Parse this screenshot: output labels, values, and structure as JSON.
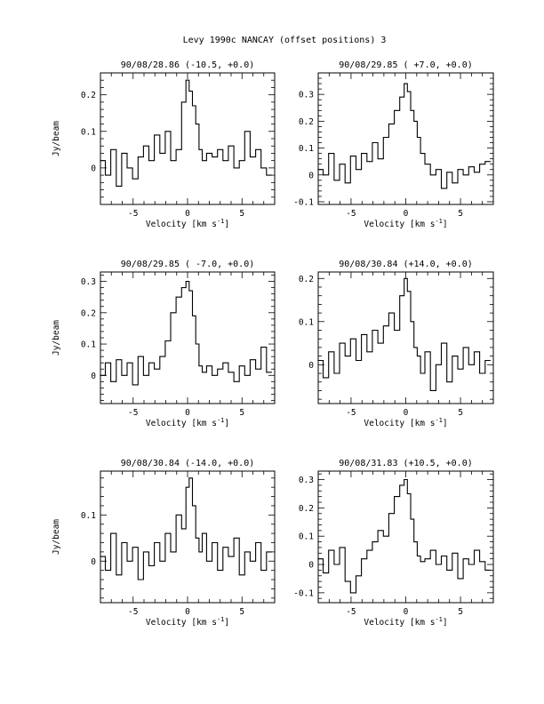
{
  "page_title": "Levy 1990c   NANCAY     (offset positions)    3",
  "chart_data": [
    {
      "type": "line",
      "title": "90/08/28.86  (-10.5, +0.0)",
      "xlabel": "Velocity [km s",
      "xlabel_sup": "-1",
      "xlabel_end": "]",
      "ylabel": "Jy/beam",
      "xlim": [
        -8,
        8
      ],
      "ylim": [
        -0.1,
        0.26
      ],
      "xticks": [
        -5,
        0,
        5
      ],
      "yticks": [
        0,
        0.1,
        0.2
      ],
      "xtick_labels": [
        "-5",
        "0",
        "5"
      ],
      "ytick_labels": [
        "0",
        "0.1",
        "0.2"
      ],
      "series": [
        {
          "x": [
            -7.8,
            -7.3,
            -6.8,
            -6.3,
            -5.8,
            -5.3,
            -4.8,
            -4.3,
            -3.8,
            -3.3,
            -2.8,
            -2.3,
            -1.8,
            -1.3,
            -0.8,
            -0.3,
            0.0,
            0.3,
            0.6,
            0.9,
            1.2,
            1.5,
            2.0,
            2.5,
            3.0,
            3.5,
            4.0,
            4.5,
            5.0,
            5.5,
            6.0,
            6.5,
            7.0,
            7.5
          ],
          "y": [
            0.02,
            -0.02,
            0.05,
            -0.05,
            0.04,
            0.0,
            -0.03,
            0.03,
            0.06,
            0.02,
            0.09,
            0.04,
            0.1,
            0.02,
            0.05,
            0.18,
            0.24,
            0.21,
            0.17,
            0.12,
            0.05,
            0.02,
            0.04,
            0.03,
            0.05,
            0.02,
            0.06,
            0.0,
            0.02,
            0.1,
            0.03,
            0.05,
            0.0,
            -0.02
          ]
        }
      ]
    },
    {
      "type": "line",
      "title": "90/08/29.85  ( +7.0, +0.0)",
      "xlabel": "Velocity [km s",
      "xlabel_sup": "-1",
      "xlabel_end": "]",
      "ylabel": "",
      "xlim": [
        -8,
        8
      ],
      "ylim": [
        -0.11,
        0.38
      ],
      "xticks": [
        -5,
        0,
        5
      ],
      "yticks": [
        -0.1,
        0,
        0.1,
        0.2,
        0.3
      ],
      "xtick_labels": [
        "-5",
        "0",
        "5"
      ],
      "ytick_labels": [
        "-0.1",
        "0",
        "0.1",
        "0.2",
        "0.3"
      ],
      "series": [
        {
          "x": [
            -7.8,
            -7.3,
            -6.8,
            -6.3,
            -5.8,
            -5.3,
            -4.8,
            -4.3,
            -3.8,
            -3.3,
            -2.8,
            -2.3,
            -1.8,
            -1.3,
            -0.8,
            -0.3,
            0.0,
            0.3,
            0.6,
            0.9,
            1.2,
            1.5,
            2.0,
            2.5,
            3.0,
            3.5,
            4.0,
            4.5,
            5.0,
            5.5,
            6.0,
            6.5,
            7.0,
            7.5
          ],
          "y": [
            0.02,
            0.0,
            0.08,
            -0.02,
            0.04,
            -0.03,
            0.07,
            0.02,
            0.08,
            0.05,
            0.12,
            0.06,
            0.14,
            0.19,
            0.24,
            0.29,
            0.34,
            0.31,
            0.24,
            0.2,
            0.14,
            0.08,
            0.04,
            0.0,
            0.02,
            -0.05,
            0.01,
            -0.03,
            0.02,
            0.0,
            0.03,
            0.01,
            0.04,
            0.05
          ]
        }
      ]
    },
    {
      "type": "line",
      "title": "90/08/29.85  ( -7.0, +0.0)",
      "xlabel": "Velocity [km s",
      "xlabel_sup": "-1",
      "xlabel_end": "]",
      "ylabel": "Jy/beam",
      "xlim": [
        -8,
        8
      ],
      "ylim": [
        -0.09,
        0.33
      ],
      "xticks": [
        -5,
        0,
        5
      ],
      "yticks": [
        0,
        0.1,
        0.2,
        0.3
      ],
      "xtick_labels": [
        "-5",
        "0",
        "5"
      ],
      "ytick_labels": [
        "0",
        "0.1",
        "0.2",
        "0.3"
      ],
      "series": [
        {
          "x": [
            -7.8,
            -7.3,
            -6.8,
            -6.3,
            -5.8,
            -5.3,
            -4.8,
            -4.3,
            -3.8,
            -3.3,
            -2.8,
            -2.3,
            -1.8,
            -1.3,
            -0.8,
            -0.3,
            0.0,
            0.3,
            0.6,
            0.9,
            1.2,
            1.5,
            2.0,
            2.5,
            3.0,
            3.5,
            4.0,
            4.5,
            5.0,
            5.5,
            6.0,
            6.5,
            7.0,
            7.5
          ],
          "y": [
            0.0,
            0.04,
            -0.02,
            0.05,
            0.0,
            0.04,
            -0.03,
            0.06,
            0.0,
            0.04,
            0.02,
            0.06,
            0.11,
            0.2,
            0.25,
            0.28,
            0.3,
            0.27,
            0.19,
            0.1,
            0.03,
            0.01,
            0.03,
            0.0,
            0.02,
            0.04,
            0.01,
            -0.02,
            0.03,
            0.0,
            0.05,
            0.02,
            0.09,
            0.01
          ]
        }
      ]
    },
    {
      "type": "line",
      "title": "90/08/30.84  (+14.0, +0.0)",
      "xlabel": "Velocity [km s",
      "xlabel_sup": "-1",
      "xlabel_end": "]",
      "ylabel": "",
      "xlim": [
        -8,
        8
      ],
      "ylim": [
        -0.09,
        0.215
      ],
      "xticks": [
        -5,
        0,
        5
      ],
      "yticks": [
        0,
        0.1,
        0.2
      ],
      "xtick_labels": [
        "-5",
        "0",
        "5"
      ],
      "ytick_labels": [
        "0",
        "0.1",
        "0.2"
      ],
      "series": [
        {
          "x": [
            -7.8,
            -7.3,
            -6.8,
            -6.3,
            -5.8,
            -5.3,
            -4.8,
            -4.3,
            -3.8,
            -3.3,
            -2.8,
            -2.3,
            -1.8,
            -1.3,
            -0.8,
            -0.3,
            0.0,
            0.3,
            0.6,
            0.9,
            1.2,
            1.5,
            2.0,
            2.5,
            3.0,
            3.5,
            4.0,
            4.5,
            5.0,
            5.5,
            6.0,
            6.5,
            7.0,
            7.5
          ],
          "y": [
            0.01,
            -0.03,
            0.03,
            -0.02,
            0.05,
            0.02,
            0.06,
            0.01,
            0.07,
            0.03,
            0.08,
            0.05,
            0.09,
            0.12,
            0.08,
            0.16,
            0.2,
            0.17,
            0.1,
            0.04,
            0.02,
            -0.02,
            0.03,
            -0.06,
            0.0,
            0.05,
            -0.04,
            0.02,
            -0.01,
            0.04,
            0.0,
            0.03,
            -0.02,
            0.01
          ]
        }
      ]
    },
    {
      "type": "line",
      "title": "90/08/30.84  (-14.0, +0.0)",
      "xlabel": "Velocity [km s",
      "xlabel_sup": "-1",
      "xlabel_end": "]",
      "ylabel": "Jy/beam",
      "xlim": [
        -8,
        8
      ],
      "ylim": [
        -0.09,
        0.195
      ],
      "xticks": [
        -5,
        0,
        5
      ],
      "yticks": [
        0,
        0.1
      ],
      "xtick_labels": [
        "-5",
        "0",
        "5"
      ],
      "ytick_labels": [
        "0",
        "0.1"
      ],
      "series": [
        {
          "x": [
            -7.8,
            -7.3,
            -6.8,
            -6.3,
            -5.8,
            -5.3,
            -4.8,
            -4.3,
            -3.8,
            -3.3,
            -2.8,
            -2.3,
            -1.8,
            -1.3,
            -0.8,
            -0.3,
            0.0,
            0.3,
            0.6,
            0.9,
            1.2,
            1.5,
            2.0,
            2.5,
            3.0,
            3.5,
            4.0,
            4.5,
            5.0,
            5.5,
            6.0,
            6.5,
            7.0,
            7.5
          ],
          "y": [
            0.01,
            -0.02,
            0.06,
            -0.03,
            0.04,
            0.0,
            0.03,
            -0.04,
            0.02,
            -0.01,
            0.04,
            0.0,
            0.06,
            0.02,
            0.1,
            0.07,
            0.16,
            0.18,
            0.12,
            0.05,
            0.02,
            0.06,
            0.0,
            0.04,
            -0.02,
            0.03,
            0.01,
            0.05,
            -0.03,
            0.02,
            0.0,
            0.04,
            -0.02,
            0.02
          ]
        }
      ]
    },
    {
      "type": "line",
      "title": "90/08/31.83  (+10.5, +0.0)",
      "xlabel": "Velocity [km s",
      "xlabel_sup": "-1",
      "xlabel_end": "]",
      "ylabel": "",
      "xlim": [
        -8,
        8
      ],
      "ylim": [
        -0.135,
        0.33
      ],
      "xticks": [
        -5,
        0,
        5
      ],
      "yticks": [
        -0.1,
        0,
        0.1,
        0.2,
        0.3
      ],
      "xtick_labels": [
        "-5",
        "0",
        "5"
      ],
      "ytick_labels": [
        "-0.1",
        "0",
        "0.1",
        "0.2",
        "0.3"
      ],
      "series": [
        {
          "x": [
            -7.8,
            -7.3,
            -6.8,
            -6.3,
            -5.8,
            -5.3,
            -4.8,
            -4.3,
            -3.8,
            -3.3,
            -2.8,
            -2.3,
            -1.8,
            -1.3,
            -0.8,
            -0.3,
            0.0,
            0.3,
            0.6,
            0.9,
            1.2,
            1.5,
            2.0,
            2.5,
            3.0,
            3.5,
            4.0,
            4.5,
            5.0,
            5.5,
            6.0,
            6.5,
            7.0,
            7.5
          ],
          "y": [
            0.02,
            -0.03,
            0.05,
            0.0,
            0.06,
            -0.06,
            -0.1,
            -0.04,
            0.02,
            0.05,
            0.08,
            0.12,
            0.1,
            0.18,
            0.24,
            0.28,
            0.3,
            0.25,
            0.16,
            0.08,
            0.03,
            0.01,
            0.02,
            0.05,
            0.0,
            0.03,
            -0.02,
            0.04,
            -0.05,
            0.02,
            0.0,
            0.05,
            0.01,
            -0.02
          ]
        }
      ]
    }
  ]
}
